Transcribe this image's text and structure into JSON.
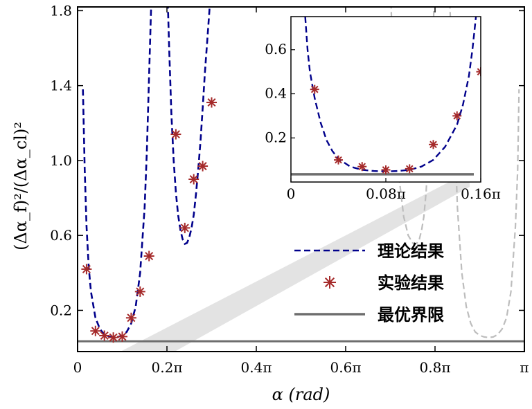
{
  "chart_data": {
    "type": "scatter",
    "xlabel": "α (rad)",
    "ylabel": "(Δα_f)²/(Δα_cl)²",
    "xlim": [
      0,
      1
    ],
    "ylim": [
      -0.02,
      1.82
    ],
    "x_unit": "π",
    "x_ticks": [
      0,
      0.2,
      0.4,
      0.6,
      0.8,
      1.0
    ],
    "x_tick_labels": [
      "0",
      "0.2π",
      "0.4π",
      "0.6π",
      "0.8π",
      "π"
    ],
    "y_ticks": [
      0.2,
      0.6,
      1.0,
      1.4,
      1.8
    ],
    "y_tick_labels": [
      "0.2",
      "0.6",
      "1.0",
      "1.4",
      "1.8"
    ],
    "legend": {
      "position": "lower-right",
      "entries": [
        {
          "label": "理论结果",
          "style": "dashed",
          "color": "#00008b"
        },
        {
          "label": "实验结果",
          "style": "star",
          "color": "#a52a2a"
        },
        {
          "label": "最优界限",
          "style": "solid",
          "color": "#6e6e6e"
        }
      ]
    },
    "series": [
      {
        "name": "理论结果",
        "kind": "curve-dashed",
        "color": "#00008b",
        "branches": [
          {
            "x": [
              0.012,
              0.016,
              0.02,
              0.025,
              0.03,
              0.04,
              0.05,
              0.06,
              0.07,
              0.08,
              0.09,
              0.1,
              0.11,
              0.12,
              0.13,
              0.14,
              0.15,
              0.155,
              0.16,
              0.165,
              0.17
            ],
            "y": [
              1.38,
              0.95,
              0.65,
              0.43,
              0.3,
              0.16,
              0.1,
              0.07,
              0.06,
              0.055,
              0.058,
              0.066,
              0.085,
              0.13,
              0.22,
              0.4,
              0.75,
              1.05,
              1.45,
              1.85,
              2.0
            ]
          },
          {
            "x": [
              0.2,
              0.205,
              0.21,
              0.215,
              0.22,
              0.225,
              0.23,
              0.235,
              0.24,
              0.245,
              0.25,
              0.255,
              0.26,
              0.265,
              0.27,
              0.275,
              0.28,
              0.285,
              0.29,
              0.295,
              0.3
            ],
            "y": [
              2.0,
              1.6,
              1.25,
              1.0,
              0.83,
              0.71,
              0.63,
              0.58,
              0.555,
              0.56,
              0.59,
              0.64,
              0.71,
              0.82,
              0.95,
              1.1,
              1.28,
              1.47,
              1.63,
              1.8,
              2.0
            ]
          }
        ]
      },
      {
        "name": "实验结果",
        "kind": "markers",
        "color": "#a52a2a",
        "x": [
          0.02,
          0.04,
          0.06,
          0.08,
          0.1,
          0.12,
          0.14,
          0.16,
          0.22,
          0.24,
          0.26,
          0.28,
          0.3
        ],
        "y": [
          0.42,
          0.09,
          0.065,
          0.055,
          0.06,
          0.16,
          0.3,
          0.49,
          1.14,
          0.64,
          0.9,
          0.97,
          1.31
        ]
      },
      {
        "name": "最优界限",
        "kind": "hline",
        "color": "#6e6e6e",
        "y": 0.035
      },
      {
        "name": "mirrored-theory",
        "kind": "curve-dashed-light",
        "color": "#bdbdbd",
        "branches": [
          {
            "x": [
              0.7,
              0.702,
              0.71,
              0.72,
              0.73,
              0.74,
              0.75,
              0.755,
              0.76,
              0.765,
              0.77,
              0.775,
              0.78,
              0.79,
              0.8
            ],
            "y": [
              2.0,
              1.8,
              1.25,
              0.9,
              0.7,
              0.6,
              0.56,
              0.555,
              0.56,
              0.58,
              0.63,
              0.7,
              0.83,
              1.25,
              2.0
            ]
          },
          {
            "x": [
              0.83,
              0.84,
              0.85,
              0.86,
              0.87,
              0.88,
              0.89,
              0.9,
              0.91,
              0.92,
              0.93,
              0.94,
              0.95,
              0.96,
              0.97,
              0.98,
              0.985,
              0.988
            ],
            "y": [
              2.0,
              1.45,
              0.75,
              0.4,
              0.22,
              0.13,
              0.085,
              0.066,
              0.058,
              0.055,
              0.058,
              0.07,
              0.1,
              0.16,
              0.3,
              0.65,
              0.95,
              1.38
            ]
          }
        ]
      }
    ],
    "shaded_region": {
      "color": "#e3e3e3",
      "from_x": [
        0.02,
        0.1
      ],
      "to_x": [
        0.86,
        0.97
      ]
    },
    "inset": {
      "xlim": [
        0,
        0.16
      ],
      "ylim": [
        0,
        0.75
      ],
      "x_ticks": [
        0,
        0.08,
        0.16
      ],
      "x_tick_labels": [
        "0",
        "0.08π",
        "0.16π"
      ],
      "y_ticks": [
        0.2,
        0.4,
        0.6
      ],
      "y_tick_labels": [
        "0.2",
        "0.4",
        "0.6"
      ],
      "theory": {
        "x": [
          0.012,
          0.014,
          0.016,
          0.02,
          0.025,
          0.03,
          0.035,
          0.04,
          0.05,
          0.06,
          0.07,
          0.08,
          0.09,
          0.1,
          0.11,
          0.12,
          0.13,
          0.14,
          0.145,
          0.15,
          0.153,
          0.156
        ],
        "y": [
          0.75,
          0.6,
          0.5,
          0.38,
          0.27,
          0.19,
          0.14,
          0.105,
          0.07,
          0.055,
          0.05,
          0.048,
          0.05,
          0.055,
          0.07,
          0.1,
          0.16,
          0.26,
          0.35,
          0.48,
          0.6,
          0.75
        ]
      },
      "experiment": {
        "x": [
          0.02,
          0.04,
          0.06,
          0.08,
          0.1,
          0.12,
          0.14,
          0.16
        ],
        "y": [
          0.42,
          0.1,
          0.07,
          0.055,
          0.06,
          0.17,
          0.3,
          0.5
        ]
      },
      "bound": 0.035
    }
  }
}
